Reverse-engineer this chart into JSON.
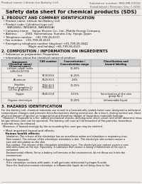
{
  "bg_color": "#f0ede8",
  "title": "Safety data sheet for chemical products (SDS)",
  "header_left": "Product name: Lithium Ion Battery Cell",
  "header_right_line1": "Substance number: SRS-MR-00010",
  "header_right_line2": "Established / Revision: Dec.7,2016",
  "section1_title": "1. PRODUCT AND COMPANY IDENTIFICATION",
  "section1_lines": [
    "  • Product name: Lithium Ion Battery Cell",
    "  • Product code: Cylindrical type cell",
    "      (INR18650, INR18650, INR18650A)",
    "  • Company name:    Sanyo Electric Co., Ltd., Mobile Energy Company",
    "  • Address:         2001  Kamimakusa, Sumoto-City, Hyogo, Japan",
    "  • Telephone number:   +81-799-26-4111",
    "  • Fax number:   +81-799-26-4121",
    "  • Emergency telephone number (daytime) +81-799-26-3842",
    "                              (Night and holiday) +81-799-26-4121"
  ],
  "section2_title": "2. COMPOSITION / INFORMATION ON INGREDIENTS",
  "section2_intro": "  • Substance or preparation: Preparation",
  "section2_sub": "  • Information about the chemical nature of product:",
  "table_headers": [
    "Component\n(Chemical name)\n(General name)",
    "CAS number",
    "Concentration /\nConcentration range",
    "Classification and\nhazard labeling"
  ],
  "table_rows": [
    [
      "Lithium cobalt oxide\n(LiMn/CoO/CO3)",
      "-",
      "30-60%",
      "-"
    ],
    [
      "Iron",
      "7439-89-6",
      "15-25%",
      "-"
    ],
    [
      "Aluminum",
      "7429-90-5",
      "2-6%",
      "-"
    ],
    [
      "Graphite\n(Kind of graphite-1)\n(of the graphite-1)",
      "7782-42-5\n7782-44-2",
      "10-25%",
      "-"
    ],
    [
      "Copper",
      "7440-50-8",
      "5-15%",
      "Sensitization of the skin\ngroup No.2"
    ],
    [
      "Organic electrolyte",
      "-",
      "10-20%",
      "Inflammable liquid"
    ]
  ],
  "section3_title": "3. HAZARDS IDENTIFICATION",
  "section3_para": [
    "For the battery cell, chemical materials are stored in a hermetically sealed metal case, designed to withstand",
    "temperature changes and pressure-force-fluctuations during normal use. As a result, during normal use, there is no",
    "physical danger of ignition or evaporation and therefore danger of hazardous materials leakage.",
    "  However, if exposed to a fire, added mechanical shocks, decomposed, short-circuit and other abnormal misuse can",
    "be gas release vent can be operated. The battery cell case will be breached of fire-particles, hazardous",
    "materials may be released.",
    "  Moreover, if heated strongly by the surrounding fire, soot gas may be emitted."
  ],
  "section3_bullet1": "  • Most important hazard and effects:",
  "section3_human": "    Human health effects:",
  "section3_effects": [
    "      Inhalation: The release of the electrolyte has an anesthesia action and stimulates a respiratory tract.",
    "      Skin contact: The release of the electrolyte stimulates a skin. The electrolyte skin contact causes a",
    "      sore and stimulation on the skin.",
    "      Eye contact: The release of the electrolyte stimulates eyes. The electrolyte eye contact causes a sore",
    "      and stimulation on the eye. Especially, a substance that causes a strong inflammation of the eye is",
    "      contained.",
    "      Environmental effects: Since a battery cell remains in the environment, do not throw out it into the",
    "      environment."
  ],
  "section3_specific": "  • Specific hazards:",
  "section3_specific_text": [
    "      If the electrolyte contacts with water, it will generate detrimental hydrogen fluoride.",
    "      Since the lead environment electrolyte is inflammable liquid, do not bring close to fire."
  ]
}
